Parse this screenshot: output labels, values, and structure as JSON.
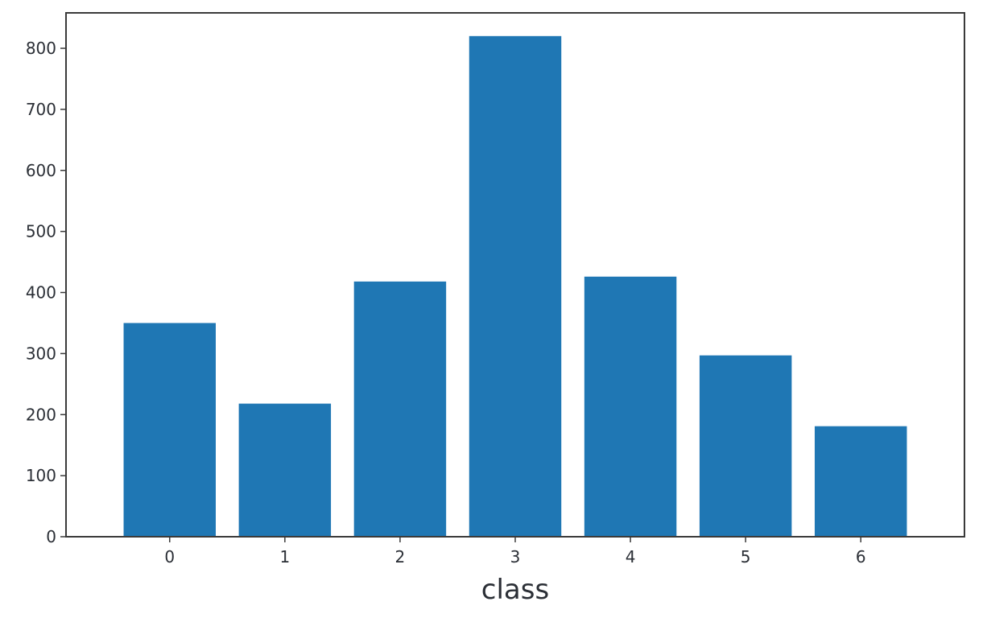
{
  "chart_data": {
    "type": "bar",
    "title": "",
    "xlabel": "class",
    "ylabel": "",
    "categories": [
      "0",
      "1",
      "2",
      "3",
      "4",
      "5",
      "6"
    ],
    "values": [
      350,
      218,
      418,
      820,
      426,
      297,
      181
    ],
    "ylim": [
      0,
      858
    ],
    "yticks": [
      0,
      100,
      200,
      300,
      400,
      500,
      600,
      700,
      800
    ],
    "bar_color": "#1f77b4",
    "axis_color": "#3a3a3a",
    "text_color": "#2b2f36",
    "grid": false,
    "legend": "none"
  }
}
